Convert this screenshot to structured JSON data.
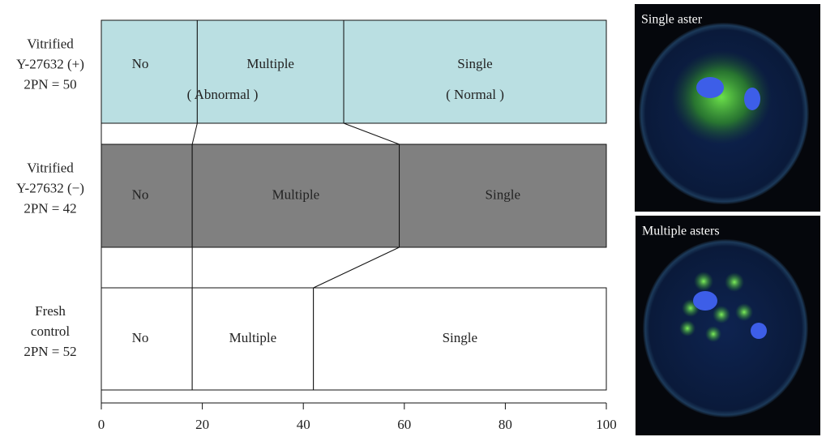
{
  "chart_data": {
    "type": "stacked-bar",
    "categories": [
      [
        "Vitrified",
        "Y-27632 (+)",
        "2PN = 50"
      ],
      [
        "Vitrified",
        "Y-27632 (−)",
        "2PN = 42"
      ],
      [
        "Fresh",
        "control",
        "2PN = 52"
      ]
    ],
    "bar_colors": [
      "#badfe2",
      "#808080",
      "#ffffff"
    ],
    "series": [
      {
        "name": "No",
        "values": [
          19,
          18,
          18
        ]
      },
      {
        "name": "Multiple",
        "values": [
          29,
          41,
          24
        ]
      },
      {
        "name": "Single",
        "values": [
          52,
          41,
          58
        ]
      }
    ],
    "annotations": [
      "( Abnormal )",
      "( Normal )"
    ],
    "xlim": [
      0,
      100
    ],
    "xticks": [
      0,
      20,
      40,
      60,
      80,
      100
    ]
  },
  "images": [
    {
      "caption": "Single aster"
    },
    {
      "caption": "Multiple asters"
    }
  ]
}
